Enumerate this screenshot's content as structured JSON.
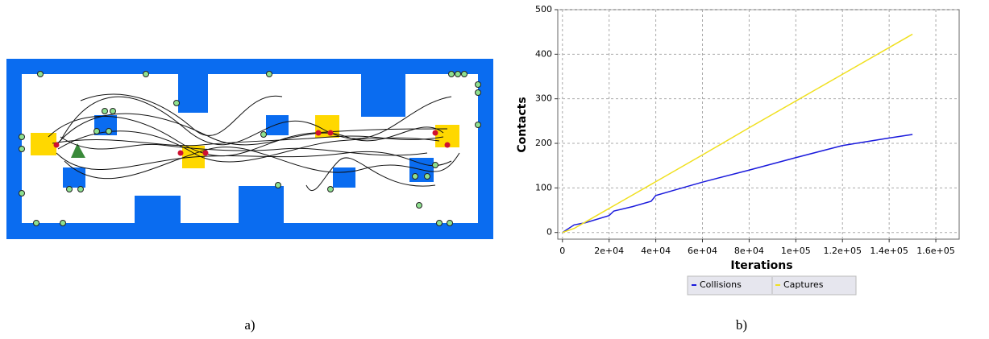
{
  "panel_labels": [
    "a)",
    "b)"
  ],
  "chart_data": {
    "type": "line",
    "x_label": "Iterations",
    "y_label": "Contacts",
    "x": [
      0,
      5000,
      10000,
      20000,
      22000,
      30000,
      38000,
      40000,
      50000,
      60000,
      80000,
      100000,
      120000,
      140000,
      150000
    ],
    "series": [
      {
        "name": "Collisions",
        "color": "#1a1adc",
        "values": [
          0,
          17,
          22,
          38,
          48,
          58,
          70,
          83,
          98,
          113,
          140,
          168,
          195,
          212,
          220
        ]
      },
      {
        "name": "Captures",
        "color": "#f0e020",
        "values": [
          0,
          9,
          24,
          54,
          60,
          84,
          108,
          114,
          144,
          174,
          235,
          295,
          355,
          415,
          445
        ]
      }
    ],
    "xlim": [
      -2000,
      170000
    ],
    "ylim": [
      -15,
      500
    ],
    "xticks": [
      0,
      {
        "value": 20000,
        "label": "2e+04"
      },
      {
        "value": 40000,
        "label": "4e+04"
      },
      {
        "value": 60000,
        "label": "6e+04"
      },
      {
        "value": 80000,
        "label": "8e+04"
      },
      {
        "value": 100000,
        "label": "1e+05"
      },
      {
        "value": 120000,
        "label": "1.2e+05"
      },
      {
        "value": 140000,
        "label": "1.4e+05"
      },
      {
        "value": 160000,
        "label": "1.6e+05"
      }
    ],
    "yticks": [
      0,
      100,
      200,
      300,
      400,
      500
    ],
    "grid": true,
    "legend": "bottom"
  }
}
